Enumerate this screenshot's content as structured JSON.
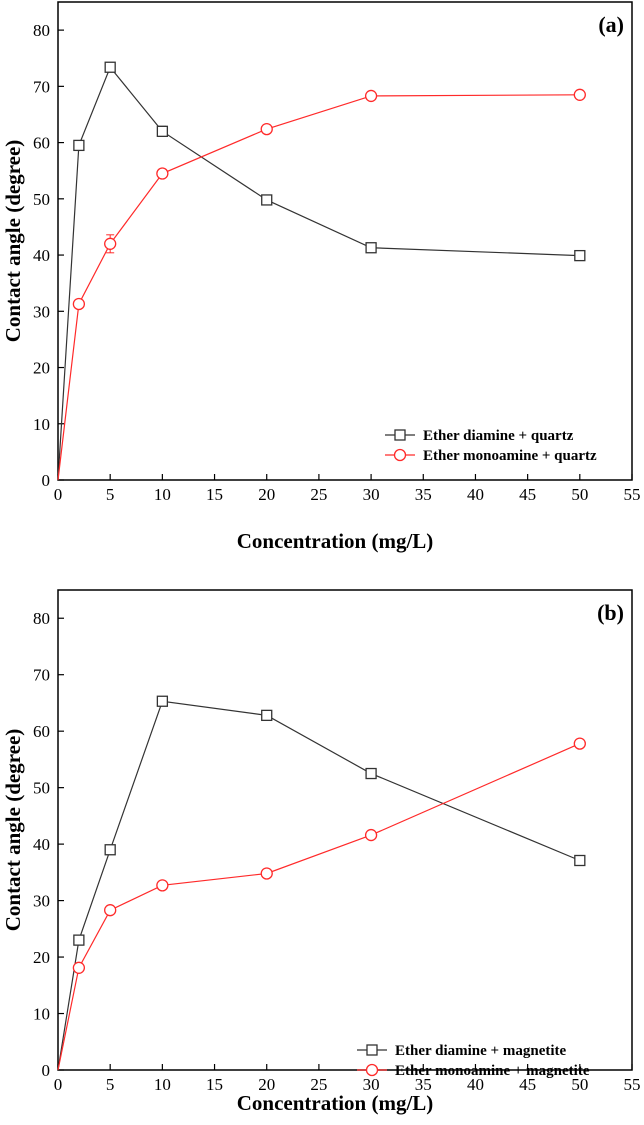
{
  "chart_data": [
    {
      "type": "line",
      "panel_label": "(a)",
      "title": "",
      "xlabel": "Concentration (mg/L)",
      "ylabel": "Contact angle (degree)",
      "xlim": [
        0,
        55
      ],
      "ylim": [
        0,
        85
      ],
      "xticks": [
        0,
        5,
        10,
        15,
        20,
        25,
        30,
        35,
        40,
        45,
        50,
        55
      ],
      "yticks": [
        0,
        10,
        20,
        30,
        40,
        50,
        60,
        70,
        80
      ],
      "grid": false,
      "legend_position": "bottom-right",
      "series": [
        {
          "name": "Ether diamine + quartz",
          "color": "#333333",
          "marker": "square",
          "x": [
            0,
            2,
            5,
            10,
            20,
            30,
            50
          ],
          "y": [
            0,
            59.5,
            73.4,
            62.0,
            49.8,
            41.3,
            39.9
          ],
          "error": [
            0,
            0.6,
            0.7,
            0.9,
            0.6,
            0.5,
            0.5
          ]
        },
        {
          "name": "Ether monoamine + quartz",
          "color": "#ff2a2a",
          "marker": "circle",
          "x": [
            0,
            2,
            5,
            10,
            20,
            30,
            50
          ],
          "y": [
            0,
            31.3,
            42.0,
            54.5,
            62.4,
            68.3,
            68.5
          ],
          "error": [
            0,
            0.5,
            1.6,
            0.5,
            0.5,
            0.6,
            0.6
          ]
        }
      ]
    },
    {
      "type": "line",
      "panel_label": "(b)",
      "title": "",
      "xlabel": "Concentration (mg/L)",
      "ylabel": "Contact angle (degree)",
      "xlim": [
        0,
        55
      ],
      "ylim": [
        0,
        85
      ],
      "xticks": [
        0,
        5,
        10,
        15,
        20,
        25,
        30,
        35,
        40,
        45,
        50,
        55
      ],
      "yticks": [
        0,
        10,
        20,
        30,
        40,
        50,
        60,
        70,
        80
      ],
      "grid": false,
      "legend_position": "bottom-right",
      "series": [
        {
          "name": "Ether diamine + magnetite",
          "color": "#333333",
          "marker": "square",
          "x": [
            0,
            2,
            5,
            10,
            20,
            30,
            50
          ],
          "y": [
            0,
            23.0,
            39.0,
            65.3,
            62.8,
            52.5,
            37.1
          ],
          "error": [
            0,
            0.6,
            0.6,
            0.7,
            0.5,
            0.6,
            0.6
          ]
        },
        {
          "name": "Ether monoamine + magnetite",
          "color": "#ff2a2a",
          "marker": "circle",
          "x": [
            0,
            2,
            5,
            10,
            20,
            30,
            50
          ],
          "y": [
            0,
            18.1,
            28.3,
            32.7,
            34.8,
            41.6,
            57.8
          ],
          "error": [
            0,
            0.5,
            0.5,
            0.5,
            0.5,
            0.5,
            0.6
          ]
        }
      ]
    }
  ]
}
